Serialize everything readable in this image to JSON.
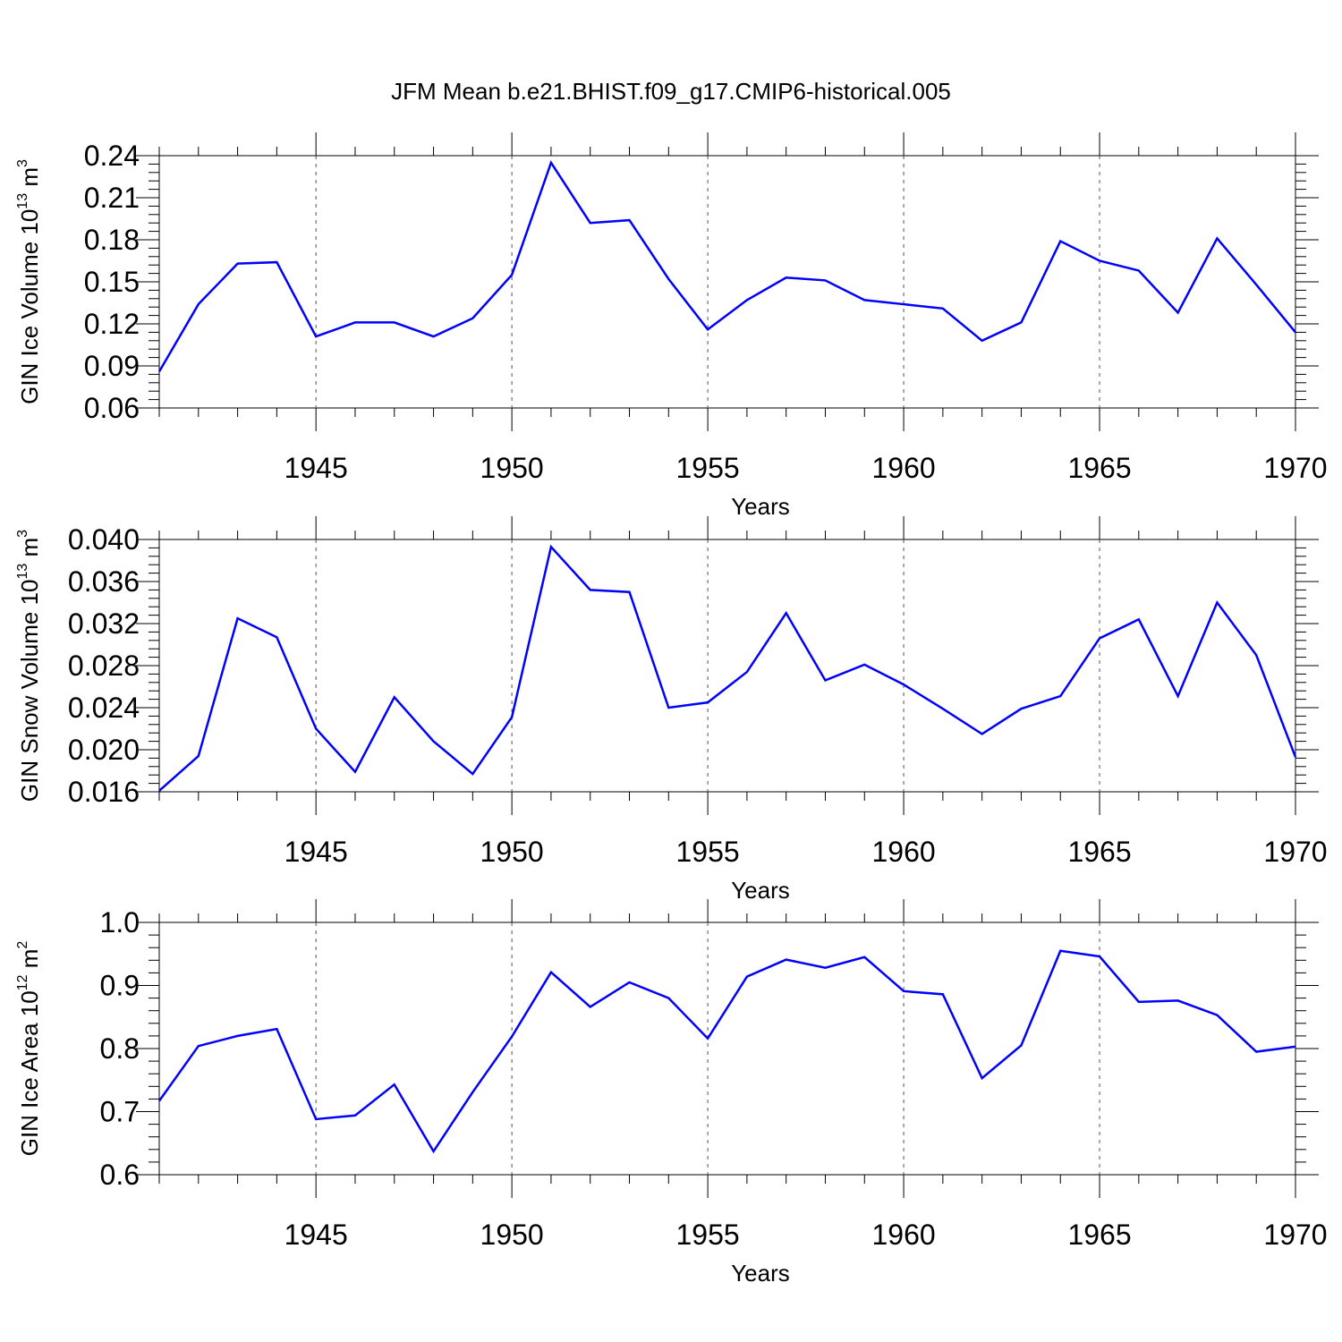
{
  "title": "JFM Mean b.e21.BHIST.f09_g17.CMIP6-historical.005",
  "line_color": "#0000ff",
  "chart_data": [
    {
      "type": "line",
      "ylabel": {
        "main": "GIN Ice Volume 10",
        "sup": "13",
        "unit": " m",
        "unit_sup": "3"
      },
      "xlabel": "Years",
      "ylim": [
        0.06,
        0.24
      ],
      "yticks": [
        "0.06",
        "0.09",
        "0.12",
        "0.15",
        "0.18",
        "0.21",
        "0.24"
      ],
      "xlim": [
        1941,
        1970
      ],
      "xticks": [
        "1945",
        "1950",
        "1955",
        "1960",
        "1965",
        "1970"
      ],
      "x": [
        1941,
        1942,
        1943,
        1944,
        1945,
        1946,
        1947,
        1948,
        1949,
        1950,
        1951,
        1952,
        1953,
        1954,
        1955,
        1956,
        1957,
        1958,
        1959,
        1960,
        1961,
        1962,
        1963,
        1964,
        1965,
        1966,
        1967,
        1968,
        1969,
        1970
      ],
      "series": [
        {
          "values": [
            0.086,
            0.134,
            0.163,
            0.164,
            0.111,
            0.121,
            0.121,
            0.111,
            0.124,
            0.155,
            0.235,
            0.192,
            0.194,
            0.152,
            0.116,
            0.137,
            0.153,
            0.151,
            0.137,
            0.134,
            0.131,
            0.108,
            0.121,
            0.179,
            0.165,
            0.158,
            0.128,
            0.181,
            0.148,
            0.114
          ]
        }
      ]
    },
    {
      "type": "line",
      "ylabel": {
        "main": "GIN Snow Volume 10",
        "sup": "13",
        "unit": " m",
        "unit_sup": "3"
      },
      "xlabel": "Years",
      "ylim": [
        0.016,
        0.04
      ],
      "yticks": [
        "0.016",
        "0.020",
        "0.024",
        "0.028",
        "0.032",
        "0.036",
        "0.040"
      ],
      "xlim": [
        1941,
        1970
      ],
      "xticks": [
        "1945",
        "1950",
        "1955",
        "1960",
        "1965",
        "1970"
      ],
      "x": [
        1941,
        1942,
        1943,
        1944,
        1945,
        1946,
        1947,
        1948,
        1949,
        1950,
        1951,
        1952,
        1953,
        1954,
        1955,
        1956,
        1957,
        1958,
        1959,
        1960,
        1961,
        1962,
        1963,
        1964,
        1965,
        1966,
        1967,
        1968,
        1969,
        1970
      ],
      "series": [
        {
          "values": [
            0.0161,
            0.0194,
            0.0325,
            0.0307,
            0.022,
            0.0179,
            0.025,
            0.0208,
            0.0177,
            0.0231,
            0.0393,
            0.0352,
            0.035,
            0.024,
            0.0245,
            0.0274,
            0.033,
            0.0266,
            0.0281,
            0.0262,
            0.0239,
            0.0215,
            0.0239,
            0.0251,
            0.0306,
            0.0324,
            0.0251,
            0.034,
            0.029,
            0.0193
          ]
        }
      ]
    },
    {
      "type": "line",
      "ylabel": {
        "main": "GIN Ice Area 10",
        "sup": "12",
        "unit": " m",
        "unit_sup": "2"
      },
      "xlabel": "Years",
      "ylim": [
        0.6,
        1.0
      ],
      "yticks": [
        "0.6",
        "0.7",
        "0.8",
        "0.9",
        "1.0"
      ],
      "xlim": [
        1941,
        1970
      ],
      "xticks": [
        "1945",
        "1950",
        "1955",
        "1960",
        "1965",
        "1970"
      ],
      "x": [
        1941,
        1942,
        1943,
        1944,
        1945,
        1946,
        1947,
        1948,
        1949,
        1950,
        1951,
        1952,
        1953,
        1954,
        1955,
        1956,
        1957,
        1958,
        1959,
        1960,
        1961,
        1962,
        1963,
        1964,
        1965,
        1966,
        1967,
        1968,
        1969,
        1970
      ],
      "series": [
        {
          "values": [
            0.717,
            0.804,
            0.82,
            0.831,
            0.688,
            0.694,
            0.743,
            0.637,
            0.731,
            0.819,
            0.921,
            0.866,
            0.905,
            0.88,
            0.816,
            0.914,
            0.941,
            0.928,
            0.945,
            0.891,
            0.886,
            0.753,
            0.805,
            0.955,
            0.946,
            0.874,
            0.876,
            0.853,
            0.795,
            0.803
          ]
        }
      ]
    }
  ]
}
